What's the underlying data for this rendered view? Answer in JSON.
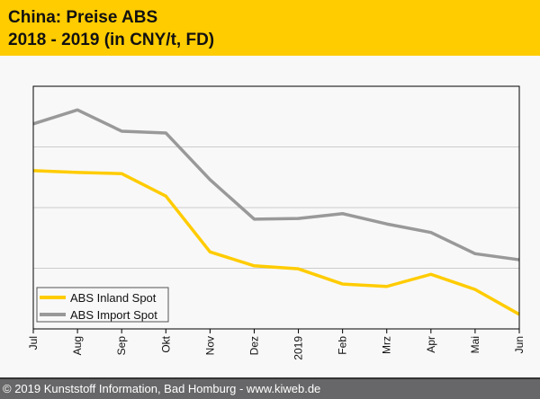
{
  "header": {
    "title_line1": "China: Preise ABS",
    "title_line2": "2018 - 2019 (in CNY/t, FD)"
  },
  "footer": {
    "text": "© 2019 Kunststoff Information, Bad Homburg - www.kiweb.de"
  },
  "colors": {
    "inland": "#ffcc00",
    "import": "#999999",
    "header": "#ffcc00"
  },
  "chart_data": {
    "type": "line",
    "title": "China: Preise ABS 2018 - 2019 (in CNY/t, FD)",
    "xlabel": "",
    "ylabel": "",
    "categories": [
      "Jul",
      "Aug",
      "Sep",
      "Okt",
      "Nov",
      "Dez",
      "2019",
      "Feb",
      "Mrz",
      "Apr",
      "Mai",
      "Jun"
    ],
    "ylim": [
      0,
      4
    ],
    "y_note": "relative scale; no y tick labels shown",
    "grid": true,
    "legend": "bottom-left",
    "series": [
      {
        "name": "ABS Inland Spot",
        "color": "#ffcc00",
        "values": [
          2.61,
          2.58,
          2.56,
          2.19,
          1.27,
          1.04,
          0.99,
          0.74,
          0.7,
          0.9,
          0.65,
          0.24
        ]
      },
      {
        "name": "ABS Import Spot",
        "color": "#999999",
        "values": [
          3.38,
          3.61,
          3.26,
          3.23,
          2.46,
          1.81,
          1.82,
          1.9,
          1.73,
          1.59,
          1.24,
          1.14
        ]
      }
    ]
  }
}
